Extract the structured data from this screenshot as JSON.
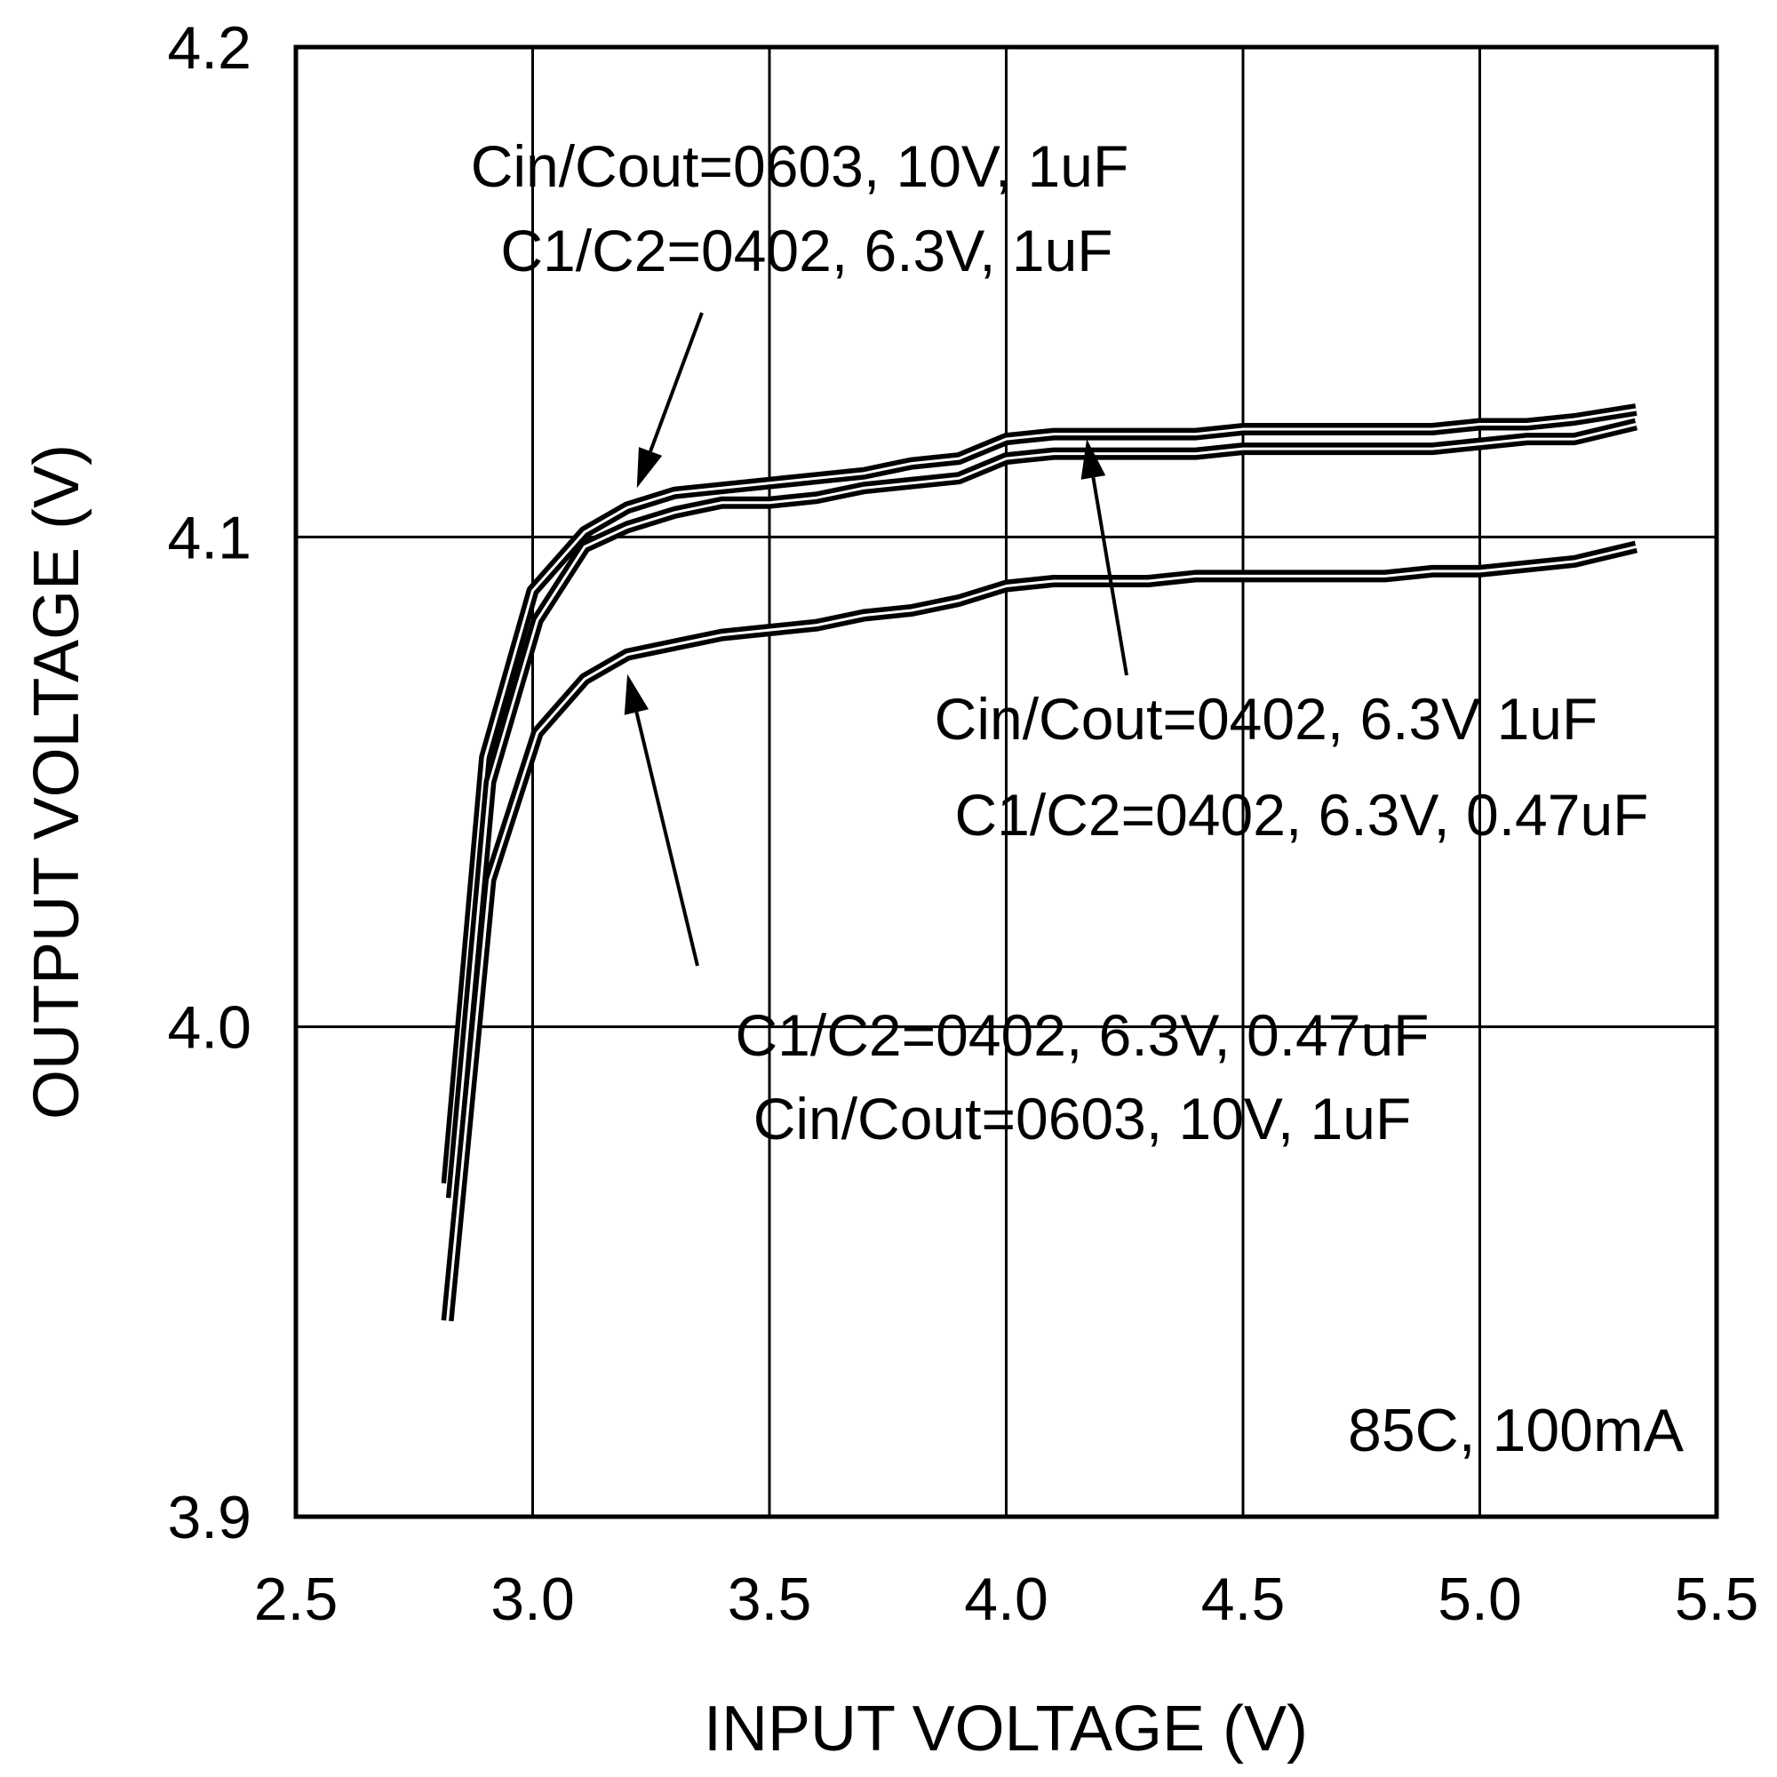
{
  "chart_data": {
    "type": "line",
    "title": "",
    "xlabel": "INPUT VOLTAGE (V)",
    "ylabel": "OUTPUT VOLTAGE (V)",
    "xlim": [
      2.5,
      5.5
    ],
    "ylim": [
      3.9,
      4.2
    ],
    "x_ticks": [
      "2.5",
      "3.0",
      "3.5",
      "4.0",
      "4.5",
      "5.0",
      "5.5"
    ],
    "y_ticks": [
      "3.9",
      "4.0",
      "4.1",
      "4.2"
    ],
    "grid": true,
    "condition_label": "85C, 100mA",
    "series": [
      {
        "annotation": [
          "Cin/Cout=0603, 10V, 1uF",
          "C1/C2=0402, 6.3V, 1uF"
        ],
        "points": [
          [
            2.82,
            3.968
          ],
          [
            2.9,
            4.055
          ],
          [
            3.0,
            4.089
          ],
          [
            3.11,
            4.101
          ],
          [
            3.2,
            4.106
          ],
          [
            3.3,
            4.109
          ],
          [
            3.4,
            4.11
          ],
          [
            3.5,
            4.111
          ],
          [
            3.6,
            4.112
          ],
          [
            3.7,
            4.113
          ],
          [
            3.8,
            4.115
          ],
          [
            3.9,
            4.116
          ],
          [
            4.0,
            4.12
          ],
          [
            4.1,
            4.121
          ],
          [
            4.2,
            4.121
          ],
          [
            4.3,
            4.121
          ],
          [
            4.4,
            4.121
          ],
          [
            4.5,
            4.122
          ],
          [
            4.6,
            4.122
          ],
          [
            4.7,
            4.122
          ],
          [
            4.8,
            4.122
          ],
          [
            4.9,
            4.122
          ],
          [
            5.0,
            4.123
          ],
          [
            5.1,
            4.123
          ],
          [
            5.2,
            4.124
          ],
          [
            5.33,
            4.126
          ]
        ]
      },
      {
        "annotation": [
          "Cin/Cout=0402, 6.3V 1uF",
          "C1/C2=0402, 6.3V, 0.47uF"
        ],
        "points": [
          [
            2.83,
            3.965
          ],
          [
            2.91,
            4.05
          ],
          [
            3.01,
            4.083
          ],
          [
            3.11,
            4.098
          ],
          [
            3.2,
            4.102
          ],
          [
            3.3,
            4.105
          ],
          [
            3.4,
            4.107
          ],
          [
            3.5,
            4.107
          ],
          [
            3.6,
            4.108
          ],
          [
            3.7,
            4.11
          ],
          [
            3.8,
            4.111
          ],
          [
            3.9,
            4.112
          ],
          [
            4.0,
            4.116
          ],
          [
            4.1,
            4.117
          ],
          [
            4.2,
            4.117
          ],
          [
            4.3,
            4.117
          ],
          [
            4.4,
            4.117
          ],
          [
            4.5,
            4.118
          ],
          [
            4.6,
            4.118
          ],
          [
            4.7,
            4.118
          ],
          [
            4.8,
            4.118
          ],
          [
            4.9,
            4.118
          ],
          [
            5.0,
            4.119
          ],
          [
            5.1,
            4.12
          ],
          [
            5.2,
            4.12
          ],
          [
            5.33,
            4.123
          ]
        ]
      },
      {
        "annotation": [
          "C1/C2=0402, 6.3V, 0.47uF",
          "Cin/Cout=0603, 10V, 1uF"
        ],
        "points": [
          [
            2.82,
            3.94
          ],
          [
            2.91,
            4.03
          ],
          [
            3.01,
            4.06
          ],
          [
            3.11,
            4.071
          ],
          [
            3.2,
            4.076
          ],
          [
            3.3,
            4.078
          ],
          [
            3.4,
            4.08
          ],
          [
            3.5,
            4.081
          ],
          [
            3.6,
            4.082
          ],
          [
            3.7,
            4.084
          ],
          [
            3.8,
            4.085
          ],
          [
            3.9,
            4.087
          ],
          [
            4.0,
            4.09
          ],
          [
            4.1,
            4.091
          ],
          [
            4.2,
            4.091
          ],
          [
            4.3,
            4.091
          ],
          [
            4.4,
            4.092
          ],
          [
            4.5,
            4.092
          ],
          [
            4.6,
            4.092
          ],
          [
            4.7,
            4.092
          ],
          [
            4.8,
            4.092
          ],
          [
            4.9,
            4.093
          ],
          [
            5.0,
            4.093
          ],
          [
            5.1,
            4.094
          ],
          [
            5.2,
            4.095
          ],
          [
            5.33,
            4.098
          ]
        ]
      }
    ]
  }
}
